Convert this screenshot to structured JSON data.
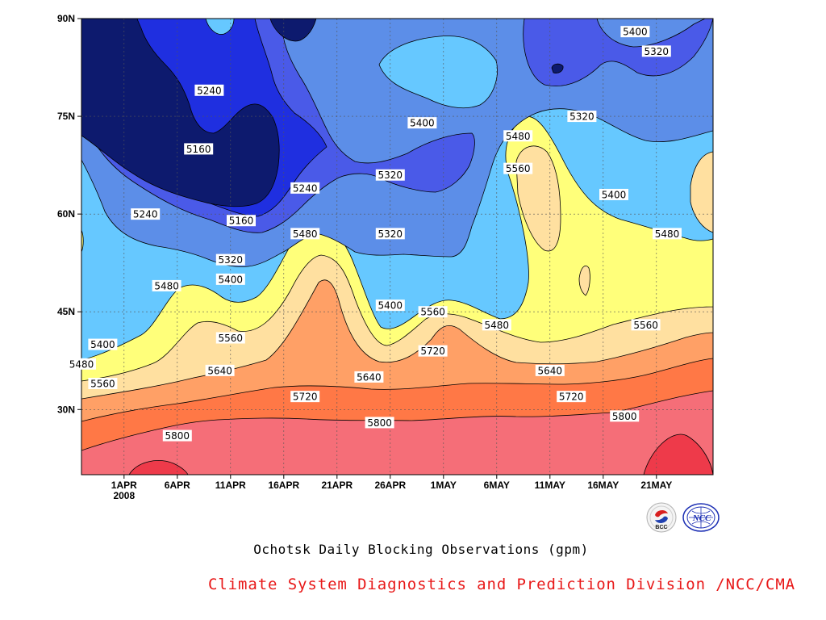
{
  "chart_data": {
    "type": "contour",
    "title": "Ochotsk Daily Blocking Observations (gpm)",
    "x_ticks": [
      "1APR",
      "6APR",
      "11APR",
      "16APR",
      "21APR",
      "26APR",
      "1MAY",
      "6MAY",
      "11MAY",
      "16MAY",
      "21MAY"
    ],
    "x_year": "2008",
    "y_ticks": [
      "30N",
      "45N",
      "60N",
      "75N",
      "90N"
    ],
    "y_tick_values": [
      30,
      45,
      60,
      75,
      90
    ],
    "ylim": [
      20,
      90
    ],
    "levels": [
      5160,
      5240,
      5320,
      5400,
      5480,
      5560,
      5640,
      5720,
      5800
    ],
    "level_colors": [
      "#0d1a6e",
      "#1f2fe0",
      "#4a5ae8",
      "#5c8ee8",
      "#66c8ff",
      "#ffff7a",
      "#ffe0a0",
      "#ffa066",
      "#ff7846",
      "#f56e78",
      "#ee3a4a"
    ],
    "contour_labels": [
      {
        "text": "5400",
        "date": "May 19",
        "lat": 88
      },
      {
        "text": "5320",
        "date": "May 21",
        "lat": 85
      },
      {
        "text": "5240",
        "date": "Apr 9",
        "lat": 79
      },
      {
        "text": "5400",
        "date": "Apr 29",
        "lat": 74
      },
      {
        "text": "5320",
        "date": "May 14",
        "lat": 75
      },
      {
        "text": "5480",
        "date": "May 8",
        "lat": 72
      },
      {
        "text": "5160",
        "date": "Apr 8",
        "lat": 70
      },
      {
        "text": "5560",
        "date": "May 8",
        "lat": 67
      },
      {
        "text": "5320",
        "date": "Apr 26",
        "lat": 66
      },
      {
        "text": "5240",
        "date": "Apr 18",
        "lat": 64
      },
      {
        "text": "5400",
        "date": "May 17",
        "lat": 63
      },
      {
        "text": "5240",
        "date": "Apr 3",
        "lat": 60
      },
      {
        "text": "5160",
        "date": "Apr 12",
        "lat": 59
      },
      {
        "text": "5480",
        "date": "May 22",
        "lat": 57
      },
      {
        "text": "5480",
        "date": "Apr 18",
        "lat": 57
      },
      {
        "text": "5320",
        "date": "Apr 26",
        "lat": 57
      },
      {
        "text": "5320",
        "date": "Apr 11",
        "lat": 53
      },
      {
        "text": "5400",
        "date": "Apr 11",
        "lat": 50
      },
      {
        "text": "5480",
        "date": "Apr 5",
        "lat": 49
      },
      {
        "text": "5400",
        "date": "Apr 26",
        "lat": 46
      },
      {
        "text": "5560",
        "date": "Apr 30",
        "lat": 45
      },
      {
        "text": "5480",
        "date": "May 6",
        "lat": 43
      },
      {
        "text": "5560",
        "date": "May 20",
        "lat": 43
      },
      {
        "text": "5400",
        "date": "Mar 30",
        "lat": 40
      },
      {
        "text": "5560",
        "date": "Apr 11",
        "lat": 41
      },
      {
        "text": "5720",
        "date": "Apr 30",
        "lat": 39
      },
      {
        "text": "5480",
        "date": "Mar 28",
        "lat": 37
      },
      {
        "text": "5640",
        "date": "Apr 10",
        "lat": 36
      },
      {
        "text": "5640",
        "date": "May 11",
        "lat": 36
      },
      {
        "text": "5640",
        "date": "Apr 24",
        "lat": 35
      },
      {
        "text": "5560",
        "date": "Mar 30",
        "lat": 34
      },
      {
        "text": "5720",
        "date": "Apr 18",
        "lat": 32
      },
      {
        "text": "5720",
        "date": "May 13",
        "lat": 32
      },
      {
        "text": "5800",
        "date": "May 18",
        "lat": 29
      },
      {
        "text": "5800",
        "date": "Apr 25",
        "lat": 28
      },
      {
        "text": "5800",
        "date": "Apr 6",
        "lat": 26
      }
    ]
  },
  "footer": {
    "title": "Ochotsk Daily Blocking Observations (gpm)",
    "credit": "Climate System Diagnostics and Prediction Division /NCC/CMA",
    "logo_left_text": "BCC",
    "logo_right_text": "NCC"
  }
}
